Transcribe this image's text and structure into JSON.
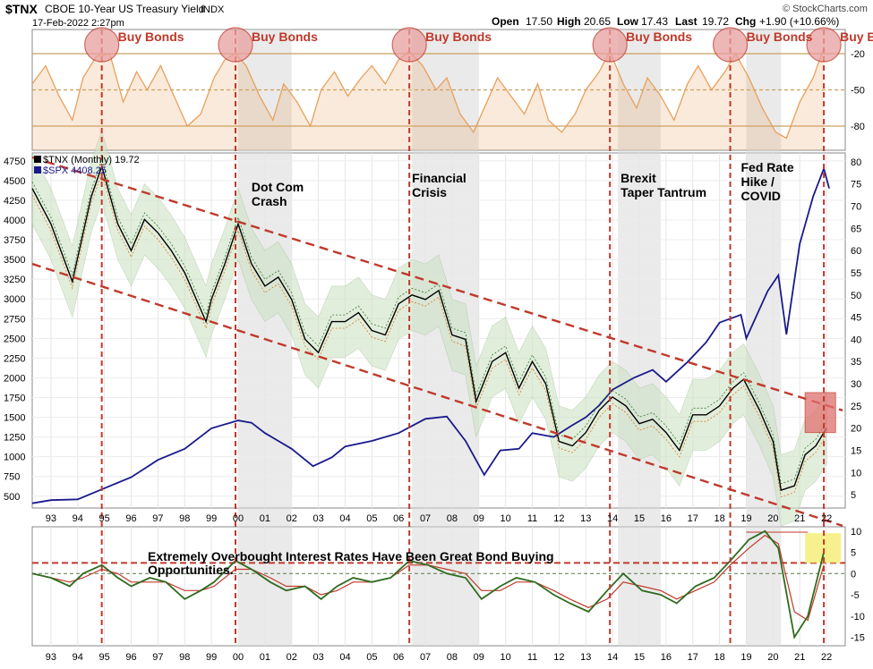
{
  "header": {
    "symbol": "$TNX",
    "description": "CBOE 10-Year US Treasury Yield",
    "exchange": "INDX",
    "date": "17-Feb-2022 2:27pm",
    "open_label": "Open",
    "open": "17.50",
    "high_label": "High",
    "high": "20.65",
    "low_label": "Low",
    "low": "17.43",
    "last_label": "Last",
    "last": "19.72",
    "chg_label": "Chg",
    "chg": "+1.90 (+10.66%)",
    "credit": "© StockCharts.com"
  },
  "colors": {
    "tnx": "#000000",
    "spx": "#1a1a8c",
    "channel": "#c0392b",
    "buy": "#c0392b",
    "buy_fill": "#e8a0a0",
    "rsi_line": "#e8a05a",
    "rsi_ref": "#c8a060",
    "band_fill": "#cfe3c6",
    "recession": "#d9d9d9",
    "macd": "#2e6b1f",
    "signal": "#c0392b",
    "highlight_red": "#e07070",
    "highlight_yellow": "#f5ef7a"
  },
  "chart_data": [
    {
      "type": "line",
      "panel": "top indicator",
      "y_ticks": [
        -20,
        -50,
        -80
      ],
      "ylim": [
        -100,
        0
      ],
      "reference_lines": [
        -20,
        -50,
        -80
      ],
      "annotations": [
        "Buy Bonds",
        "Buy Bonds",
        "Buy Bonds",
        "Buy Bonds",
        "Buy Bonds",
        "Buy Bonds"
      ],
      "buy_signal_years": [
        1994.9,
        1999.9,
        2006.4,
        2013.9,
        2018.4,
        2021.9
      ],
      "series": [
        {
          "values_x": [
            1992.3,
            1992.8,
            1993.3,
            1993.8,
            1994.2,
            1994.7,
            1995.2,
            1995.7,
            1996.2,
            1996.6,
            1997.1,
            1997.6,
            1998.1,
            1998.6,
            1999.1,
            1999.5,
            1999.9,
            2000.3,
            2000.8,
            2001.3,
            2001.7,
            2002.2,
            2002.7,
            2003.1,
            2003.6,
            2004.1,
            2004.6,
            2005.0,
            2005.5,
            2006.0,
            2006.4,
            2006.9,
            2007.4,
            2007.8,
            2008.3,
            2008.8,
            2009.3,
            2009.7,
            2010.2,
            2010.7,
            2011.2,
            2011.6,
            2012.1,
            2012.6,
            2013.0,
            2013.5,
            2013.9,
            2014.4,
            2014.9,
            2015.3,
            2015.8,
            2016.3,
            2016.8,
            2017.2,
            2017.7,
            2018.2,
            2018.6,
            2019.1,
            2019.6,
            2020.1,
            2020.5,
            2021.0,
            2021.5,
            2021.9
          ],
          "values": [
            -45,
            -30,
            -55,
            -75,
            -40,
            -22,
            -20,
            -60,
            -35,
            -50,
            -30,
            -55,
            -80,
            -70,
            -40,
            -25,
            -20,
            -30,
            -55,
            -75,
            -45,
            -60,
            -80,
            -50,
            -35,
            -55,
            -40,
            -30,
            -45,
            -25,
            -18,
            -30,
            -50,
            -40,
            -70,
            -85,
            -60,
            -40,
            -55,
            -70,
            -45,
            -75,
            -85,
            -70,
            -50,
            -35,
            -18,
            -45,
            -65,
            -40,
            -55,
            -75,
            -45,
            -30,
            -50,
            -35,
            -20,
            -40,
            -65,
            -85,
            -90,
            -60,
            -40,
            -15
          ]
        }
      ]
    },
    {
      "type": "line",
      "panel": "main",
      "legend": [
        "$TNX (Monthly) 19.72",
        "$SPX 4408.25"
      ],
      "left_axis_ticks": [
        4750,
        4500,
        4250,
        4000,
        3750,
        3500,
        3250,
        3000,
        2750,
        2500,
        2250,
        2000,
        1750,
        1500,
        1250,
        1000,
        750,
        500
      ],
      "right_axis_ticks": [
        80,
        75,
        70,
        65,
        60,
        55,
        50,
        45,
        40,
        35,
        30,
        25,
        20,
        15,
        10,
        5
      ],
      "left_ylim": [
        350,
        4850
      ],
      "right_ylim": [
        2,
        82
      ],
      "x_ticks": [
        "93",
        "94",
        "95",
        "96",
        "97",
        "98",
        "99",
        "00",
        "01",
        "02",
        "03",
        "04",
        "05",
        "06",
        "07",
        "08",
        "09",
        "10",
        "11",
        "12",
        "13",
        "14",
        "15",
        "16",
        "17",
        "18",
        "19",
        "20",
        "21",
        "22"
      ],
      "xlim": [
        1992.3,
        2022.7
      ],
      "annotations": [
        "Dot Com\nCrash",
        "Financial\nCrisis",
        "Brexit\nTaper Tantrum",
        "Fed Rate\nHike /\nCOVID"
      ],
      "recession_shading": [
        [
          2000.0,
          2002.0
        ],
        [
          2006.5,
          2009.0
        ],
        [
          2014.2,
          2015.8
        ],
        [
          2019.0,
          2020.3
        ]
      ],
      "series": [
        {
          "name": "$TNX (Monthly) 19.72",
          "x": [
            1992.3,
            1993.0,
            1993.8,
            1994.5,
            1994.9,
            1995.5,
            1996.0,
            1996.5,
            1997.0,
            1997.5,
            1998.0,
            1998.8,
            1999.0,
            1999.5,
            2000.0,
            2000.5,
            2001.0,
            2001.5,
            2002.0,
            2002.5,
            2003.0,
            2003.5,
            2004.0,
            2004.5,
            2005.0,
            2005.5,
            2006.0,
            2006.5,
            2007.0,
            2007.5,
            2008.0,
            2008.5,
            2008.9,
            2009.5,
            2010.0,
            2010.5,
            2011.0,
            2011.5,
            2012.0,
            2012.5,
            2013.0,
            2013.5,
            2014.0,
            2014.5,
            2015.0,
            2015.5,
            2016.0,
            2016.5,
            2017.0,
            2017.5,
            2018.0,
            2018.5,
            2018.9,
            2019.5,
            2020.0,
            2020.3,
            2020.8,
            2021.2,
            2021.6,
            2022.0
          ],
          "values": [
            74,
            66,
            53,
            72,
            79,
            66,
            60,
            67,
            64,
            60,
            55,
            44,
            49,
            57,
            66,
            57,
            52,
            54,
            49,
            40,
            37,
            44,
            44,
            46,
            42,
            41,
            48,
            50,
            49,
            51,
            41,
            40,
            26,
            35,
            37,
            29,
            35,
            30,
            17,
            16,
            19,
            24,
            27,
            25,
            21,
            22,
            19,
            15,
            23,
            23,
            25,
            29,
            31,
            24,
            17,
            6,
            7,
            14,
            16,
            20
          ]
        },
        {
          "name": "$SPX 4408.25",
          "x": [
            1992.3,
            1993.0,
            1994.0,
            1995.0,
            1996.0,
            1997.0,
            1998.0,
            1999.0,
            2000.0,
            2000.5,
            2001.0,
            2001.5,
            2002.0,
            2002.8,
            2003.5,
            2004.0,
            2005.0,
            2006.0,
            2007.0,
            2007.8,
            2008.5,
            2009.2,
            2009.8,
            2010.5,
            2011.0,
            2011.8,
            2012.5,
            2013.0,
            2013.5,
            2014.0,
            2014.8,
            2015.5,
            2016.0,
            2016.8,
            2017.5,
            2018.0,
            2018.8,
            2019.0,
            2019.8,
            2020.2,
            2020.5,
            2021.0,
            2021.5,
            2021.9,
            2022.1
          ],
          "values": [
            410,
            450,
            460,
            600,
            740,
            960,
            1100,
            1360,
            1460,
            1430,
            1300,
            1200,
            1100,
            880,
            990,
            1130,
            1200,
            1300,
            1480,
            1510,
            1200,
            770,
            1080,
            1100,
            1300,
            1250,
            1400,
            1500,
            1650,
            1850,
            2000,
            2100,
            1950,
            2200,
            2450,
            2700,
            2800,
            2500,
            3100,
            3300,
            2550,
            3700,
            4300,
            4650,
            4400
          ]
        }
      ]
    },
    {
      "type": "line",
      "panel": "bottom indicator",
      "y_ticks": [
        10,
        5,
        0,
        -5,
        -10,
        -15
      ],
      "ylim": [
        -17,
        11
      ],
      "annotations": [
        "Extremely Overbought Interest Rates Have Been Great Bond Buying Opportunities."
      ],
      "reference_lines": [
        2.5,
        0
      ],
      "series": [
        {
          "x": [
            1992.3,
            1993.0,
            1993.7,
            1994.2,
            1994.9,
            1995.5,
            1996.0,
            1996.7,
            1997.3,
            1998.0,
            1998.6,
            1999.1,
            1999.9,
            2000.5,
            2001.2,
            2001.8,
            2002.5,
            2003.1,
            2003.7,
            2004.3,
            2005.0,
            2005.7,
            2006.4,
            2007.1,
            2007.8,
            2008.5,
            2009.1,
            2009.8,
            2010.4,
            2011.1,
            2011.8,
            2012.4,
            2013.1,
            2013.8,
            2014.4,
            2015.1,
            2015.8,
            2016.4,
            2017.1,
            2017.8,
            2018.4,
            2019.1,
            2019.7,
            2020.2,
            2020.8,
            2021.3,
            2021.9
          ],
          "values": [
            0,
            -1,
            -3,
            0,
            2,
            -1,
            -3,
            -1,
            -2,
            -6,
            -4,
            -2,
            3,
            1,
            -2,
            -4,
            -3,
            -6,
            -3,
            -1,
            -2,
            -1,
            3,
            2,
            0,
            -1,
            -6,
            -3,
            -1,
            -2,
            -5,
            -7,
            -9,
            -4,
            0,
            -4,
            -5,
            -7,
            -3,
            -1,
            3,
            8,
            10,
            6,
            -15,
            -10,
            5
          ]
        },
        {
          "x": [
            1992.3,
            1993.0,
            1993.7,
            1994.2,
            1994.9,
            1995.5,
            1996.0,
            1996.7,
            1997.3,
            1998.0,
            1998.6,
            1999.1,
            1999.9,
            2000.5,
            2001.2,
            2001.8,
            2002.5,
            2003.1,
            2003.7,
            2004.3,
            2005.0,
            2005.7,
            2006.4,
            2007.1,
            2007.8,
            2008.5,
            2009.1,
            2009.8,
            2010.4,
            2011.1,
            2011.8,
            2012.4,
            2013.1,
            2013.8,
            2014.4,
            2015.1,
            2015.8,
            2016.4,
            2017.1,
            2017.8,
            2018.4,
            2019.1,
            2019.7,
            2020.2,
            2020.8,
            2021.3,
            2021.9
          ],
          "values": [
            0,
            -1,
            -2,
            -1,
            1,
            0,
            -2,
            -2,
            -2,
            -4,
            -4,
            -3,
            1,
            1,
            -1,
            -3,
            -3,
            -5,
            -4,
            -2,
            -2,
            -1,
            2,
            2,
            1,
            0,
            -4,
            -4,
            -2,
            -2,
            -4,
            -6,
            -8,
            -6,
            -2,
            -3,
            -4,
            -6,
            -4,
            -2,
            2,
            6,
            9,
            7,
            -9,
            -11,
            2
          ]
        }
      ]
    }
  ]
}
